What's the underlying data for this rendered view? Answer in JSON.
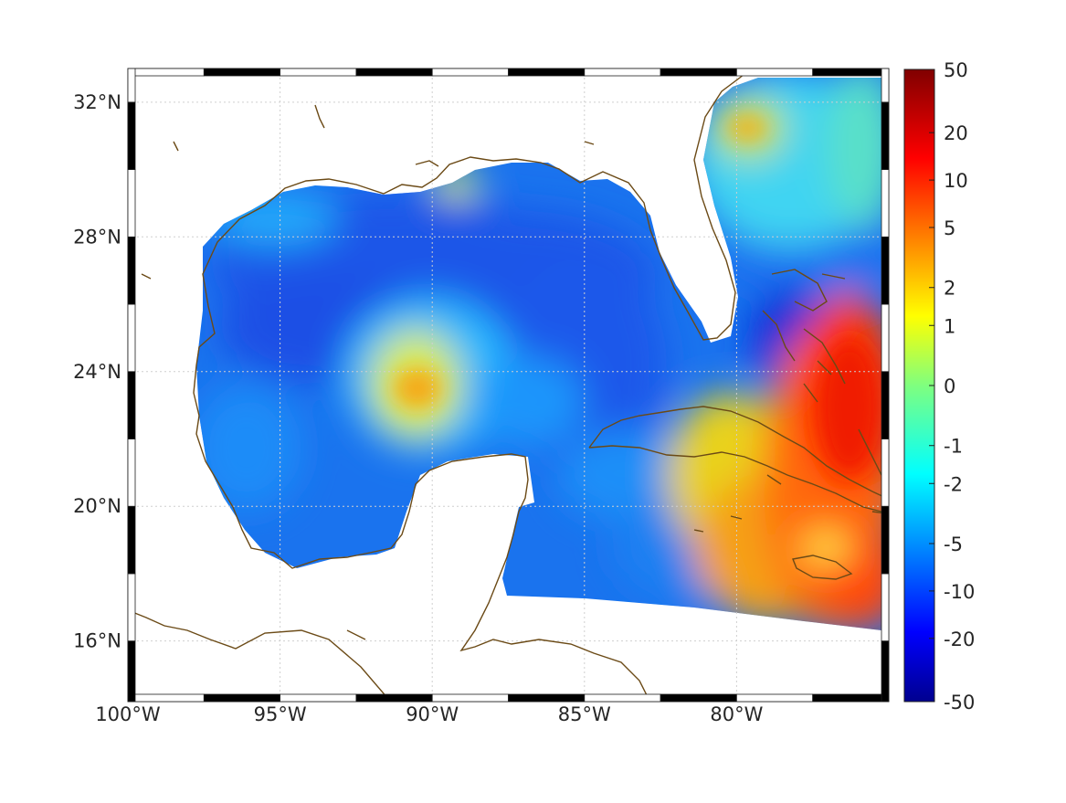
{
  "map": {
    "lon_ticks": [
      "100°W",
      "95°W",
      "90°W",
      "85°W",
      "80°W"
    ],
    "lat_ticks": [
      "32°N",
      "28°N",
      "24°N",
      "20°N",
      "16°N"
    ],
    "lon_extent": [
      -100,
      -75
    ],
    "lat_extent": [
      14.2,
      33
    ],
    "grid": true,
    "coastline_color": "#6b4a16"
  },
  "colorbar": {
    "tick_labels": [
      "50",
      "20",
      "10",
      "5",
      "2",
      "1",
      "0",
      "-1",
      "-2",
      "-5",
      "-10",
      "-20",
      "-50"
    ],
    "colormap": "jet",
    "placement": "right"
  }
}
